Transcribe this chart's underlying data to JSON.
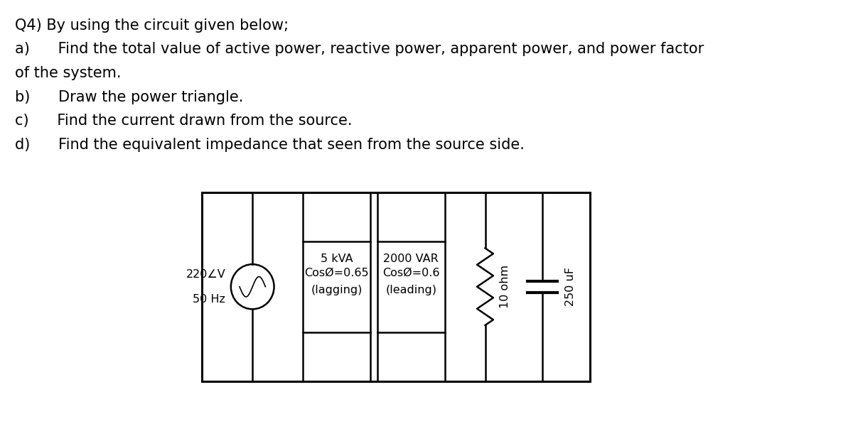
{
  "title_line1": "Q4) By using the circuit given below;",
  "line_a": "a)      Find the total value of active power, reactive power, apparent power, and power factor",
  "line_a2": "of the system.",
  "line_b": "b)      Draw the power triangle.",
  "line_c": "c)      Find the current drawn from the source.",
  "line_d": "d)      Find the equivalent impedance that seen from the source side.",
  "source_label1": "220∠V",
  "source_label2": "50 Hz",
  "load1_line1": "5 kVA",
  "load1_line2": "CosØ=0.65",
  "load1_line3": "(lagging)",
  "load2_line1": "2000 VAR",
  "load2_line2": "CosØ=0.6",
  "load2_line3": "(leading)",
  "resistor_label": "10 ohm",
  "capacitor_label": "250 uF",
  "bg_color": "#ffffff",
  "text_color": "#000000",
  "line_color": "#000000",
  "font_size_text": 15,
  "font_size_circuit": 11.5
}
